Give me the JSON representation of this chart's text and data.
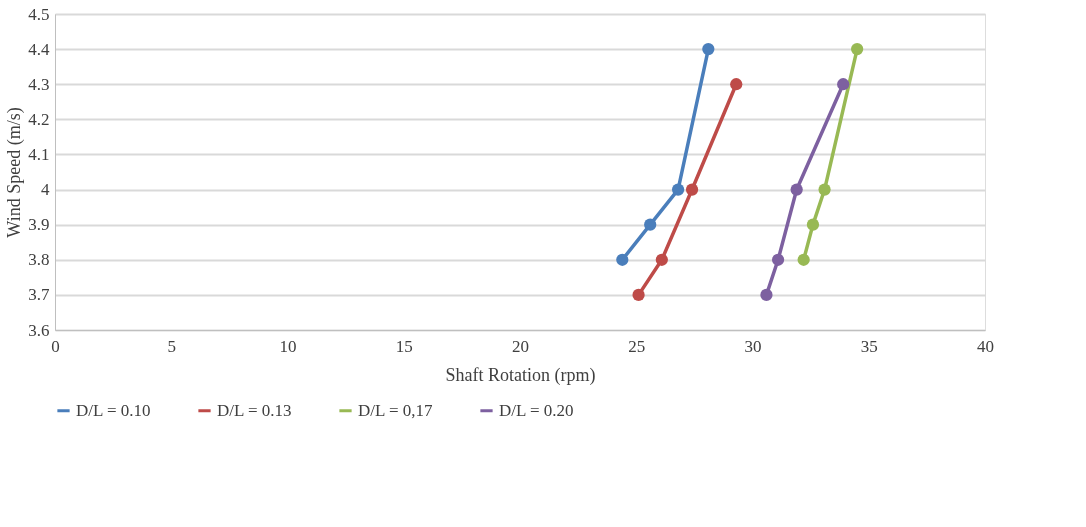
{
  "chart_data": {
    "type": "line",
    "xlabel": "Shaft Rotation (rpm)",
    "ylabel": "Wind Speed (m/s)",
    "xlim": [
      0,
      40
    ],
    "xticks": [
      0,
      5,
      10,
      15,
      20,
      25,
      30,
      35,
      40
    ],
    "ylim": [
      3.6,
      4.5
    ],
    "yticks": [
      3.6,
      3.7,
      3.8,
      3.9,
      4,
      4.1,
      4.2,
      4.3,
      4.4,
      4.5
    ],
    "grid": "y",
    "legend": "bottom",
    "marker": "circle",
    "line_style": "solid",
    "series": [
      {
        "name": "D/L = 0.10",
        "color": "#4a7ebb",
        "x": [
          24.4,
          25.6,
          26.8,
          28.1
        ],
        "values": [
          3.8,
          3.9,
          4.0,
          4.4
        ]
      },
      {
        "name": "D/L = 0.13",
        "color": "#be4b48",
        "x": [
          25.1,
          26.1,
          27.4,
          29.3
        ],
        "values": [
          3.7,
          3.8,
          4.0,
          4.3
        ]
      },
      {
        "name": "D/L = 0,17",
        "color": "#98b954",
        "x": [
          32.2,
          32.6,
          33.1,
          34.5
        ],
        "values": [
          3.8,
          3.9,
          4.0,
          4.4
        ]
      },
      {
        "name": "D/L = 0.20",
        "color": "#7d60a0",
        "x": [
          30.6,
          31.1,
          31.9,
          33.9
        ],
        "values": [
          3.7,
          3.8,
          4.0,
          4.3
        ]
      }
    ]
  }
}
